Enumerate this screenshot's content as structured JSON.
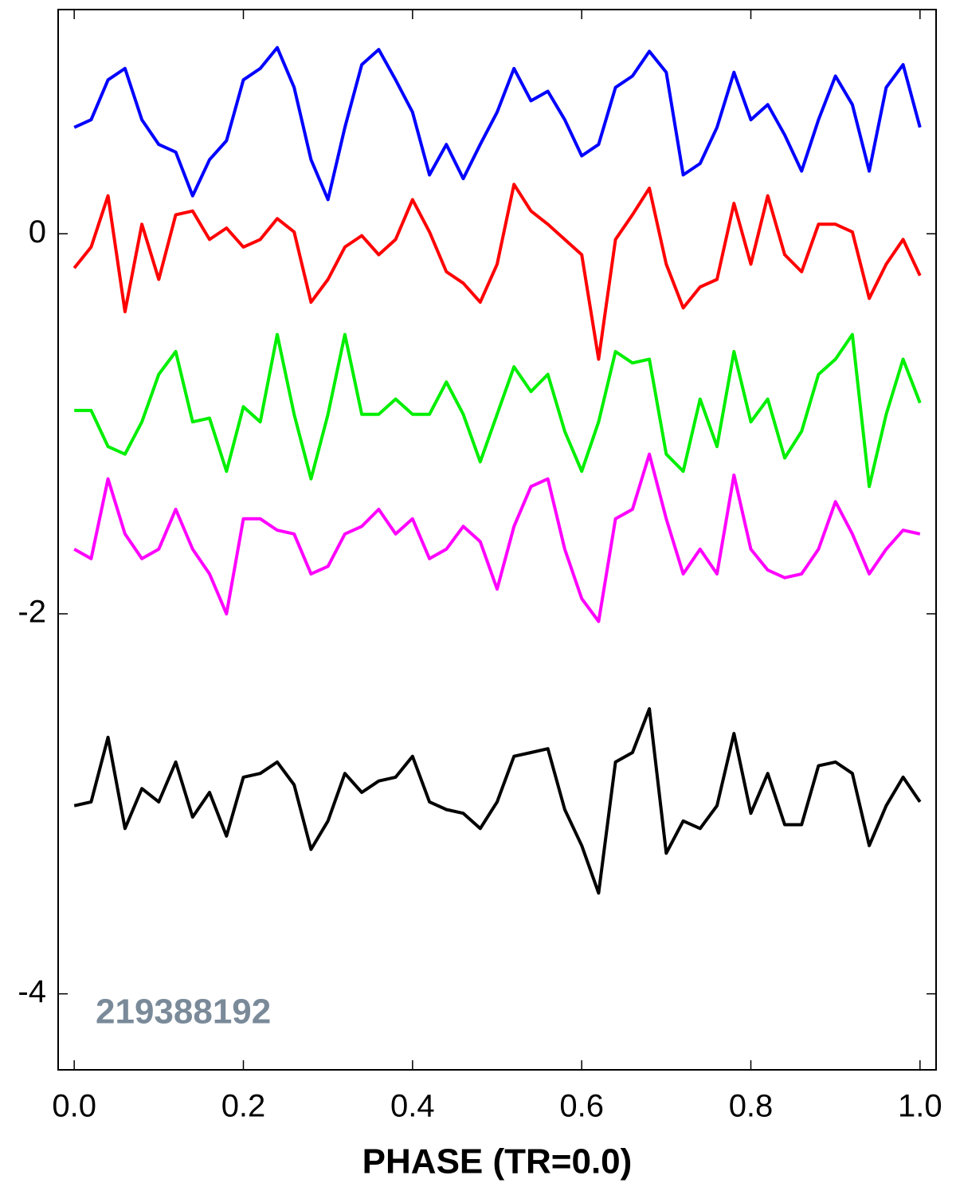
{
  "chart_data": {
    "type": "line",
    "x_label": "PHASE (TR=0.0)",
    "annotation": "219388192",
    "xlim": [
      -0.019,
      1.019
    ],
    "ylim": [
      -4.4,
      1.18
    ],
    "xticks": [
      {
        "value": 0,
        "label": "0.0"
      },
      {
        "value": 0.2,
        "label": "0.2"
      },
      {
        "value": 0.4,
        "label": "0.4"
      },
      {
        "value": 0.6,
        "label": "0.6"
      },
      {
        "value": 0.8,
        "label": "0.8"
      },
      {
        "value": 1,
        "label": "1.0"
      }
    ],
    "yticks": [
      0,
      -2,
      -4
    ],
    "x": [
      0,
      0.02,
      0.04,
      0.06,
      0.08,
      0.1,
      0.12,
      0.14,
      0.16,
      0.18,
      0.2,
      0.22,
      0.24,
      0.26,
      0.28,
      0.3,
      0.32,
      0.34,
      0.36,
      0.38,
      0.4,
      0.42,
      0.44,
      0.46,
      0.48,
      0.5,
      0.52,
      0.54,
      0.56,
      0.58,
      0.6,
      0.62,
      0.64,
      0.66,
      0.68,
      0.7,
      0.72,
      0.74,
      0.76,
      0.78,
      0.8,
      0.82,
      0.84,
      0.86,
      0.88,
      0.9,
      0.92,
      0.94,
      0.96,
      0.98,
      1
    ],
    "series": [
      {
        "color": "#0000ff",
        "values": [
          0.56,
          0.6,
          0.81,
          0.87,
          0.6,
          0.47,
          0.43,
          0.2,
          0.39,
          0.49,
          0.81,
          0.87,
          0.98,
          0.77,
          0.39,
          0.18,
          0.56,
          0.89,
          0.97,
          0.81,
          0.64,
          0.31,
          0.47,
          0.29,
          0.47,
          0.64,
          0.87,
          0.7,
          0.75,
          0.6,
          0.41,
          0.47,
          0.77,
          0.83,
          0.96,
          0.85,
          0.31,
          0.37,
          0.56,
          0.85,
          0.6,
          0.68,
          0.52,
          0.33,
          0.6,
          0.83,
          0.68,
          0.33,
          0.77,
          0.89,
          0.56
        ]
      },
      {
        "color": "#ff0000",
        "values": [
          -0.18,
          -0.07,
          0.2,
          -0.41,
          0.05,
          -0.24,
          0.1,
          0.12,
          -0.03,
          0.03,
          -0.07,
          -0.03,
          0.08,
          0.01,
          -0.36,
          -0.24,
          -0.07,
          -0.01,
          -0.11,
          -0.03,
          0.18,
          0.01,
          -0.2,
          -0.26,
          -0.36,
          -0.16,
          0.26,
          0.12,
          0.05,
          -0.03,
          -0.11,
          -0.66,
          -0.03,
          0.1,
          0.24,
          -0.16,
          -0.39,
          -0.28,
          -0.24,
          0.16,
          -0.16,
          0.2,
          -0.11,
          -0.2,
          0.05,
          0.05,
          0.01,
          -0.34,
          -0.16,
          -0.03,
          -0.22
        ]
      },
      {
        "color": "#00ee00",
        "values": [
          -0.93,
          -0.93,
          -1.12,
          -1.16,
          -0.99,
          -0.74,
          -0.62,
          -0.99,
          -0.97,
          -1.25,
          -0.91,
          -0.99,
          -0.53,
          -0.95,
          -1.29,
          -0.95,
          -0.53,
          -0.95,
          -0.95,
          -0.87,
          -0.95,
          -0.95,
          -0.78,
          -0.95,
          -1.2,
          -0.95,
          -0.7,
          -0.83,
          -0.74,
          -1.04,
          -1.25,
          -0.99,
          -0.62,
          -0.68,
          -0.66,
          -1.16,
          -1.25,
          -0.87,
          -1.12,
          -0.62,
          -0.99,
          -0.87,
          -1.18,
          -1.04,
          -0.74,
          -0.66,
          -0.53,
          -1.33,
          -0.95,
          -0.66,
          -0.89
        ]
      },
      {
        "color": "#ff00ff",
        "values": [
          -1.66,
          -1.71,
          -1.29,
          -1.58,
          -1.71,
          -1.66,
          -1.45,
          -1.66,
          -1.79,
          -2.0,
          -1.5,
          -1.5,
          -1.56,
          -1.58,
          -1.79,
          -1.75,
          -1.58,
          -1.54,
          -1.45,
          -1.58,
          -1.5,
          -1.71,
          -1.66,
          -1.54,
          -1.62,
          -1.87,
          -1.54,
          -1.33,
          -1.29,
          -1.66,
          -1.92,
          -2.04,
          -1.5,
          -1.45,
          -1.16,
          -1.5,
          -1.79,
          -1.66,
          -1.79,
          -1.27,
          -1.66,
          -1.77,
          -1.81,
          -1.79,
          -1.66,
          -1.41,
          -1.58,
          -1.79,
          -1.66,
          -1.56,
          -1.58
        ]
      },
      {
        "color": "#000000",
        "values": [
          -3.01,
          -2.99,
          -2.65,
          -3.13,
          -2.92,
          -2.99,
          -2.78,
          -3.07,
          -2.94,
          -3.17,
          -2.86,
          -2.84,
          -2.78,
          -2.9,
          -3.24,
          -3.09,
          -2.84,
          -2.94,
          -2.88,
          -2.86,
          -2.75,
          -2.99,
          -3.03,
          -3.05,
          -3.13,
          -2.99,
          -2.75,
          -2.73,
          -2.71,
          -3.03,
          -3.22,
          -3.47,
          -2.78,
          -2.73,
          -2.5,
          -3.26,
          -3.09,
          -3.13,
          -3.01,
          -2.63,
          -3.05,
          -2.84,
          -3.11,
          -3.11,
          -2.8,
          -2.78,
          -2.84,
          -3.22,
          -3.01,
          -2.86,
          -2.99
        ]
      }
    ]
  }
}
